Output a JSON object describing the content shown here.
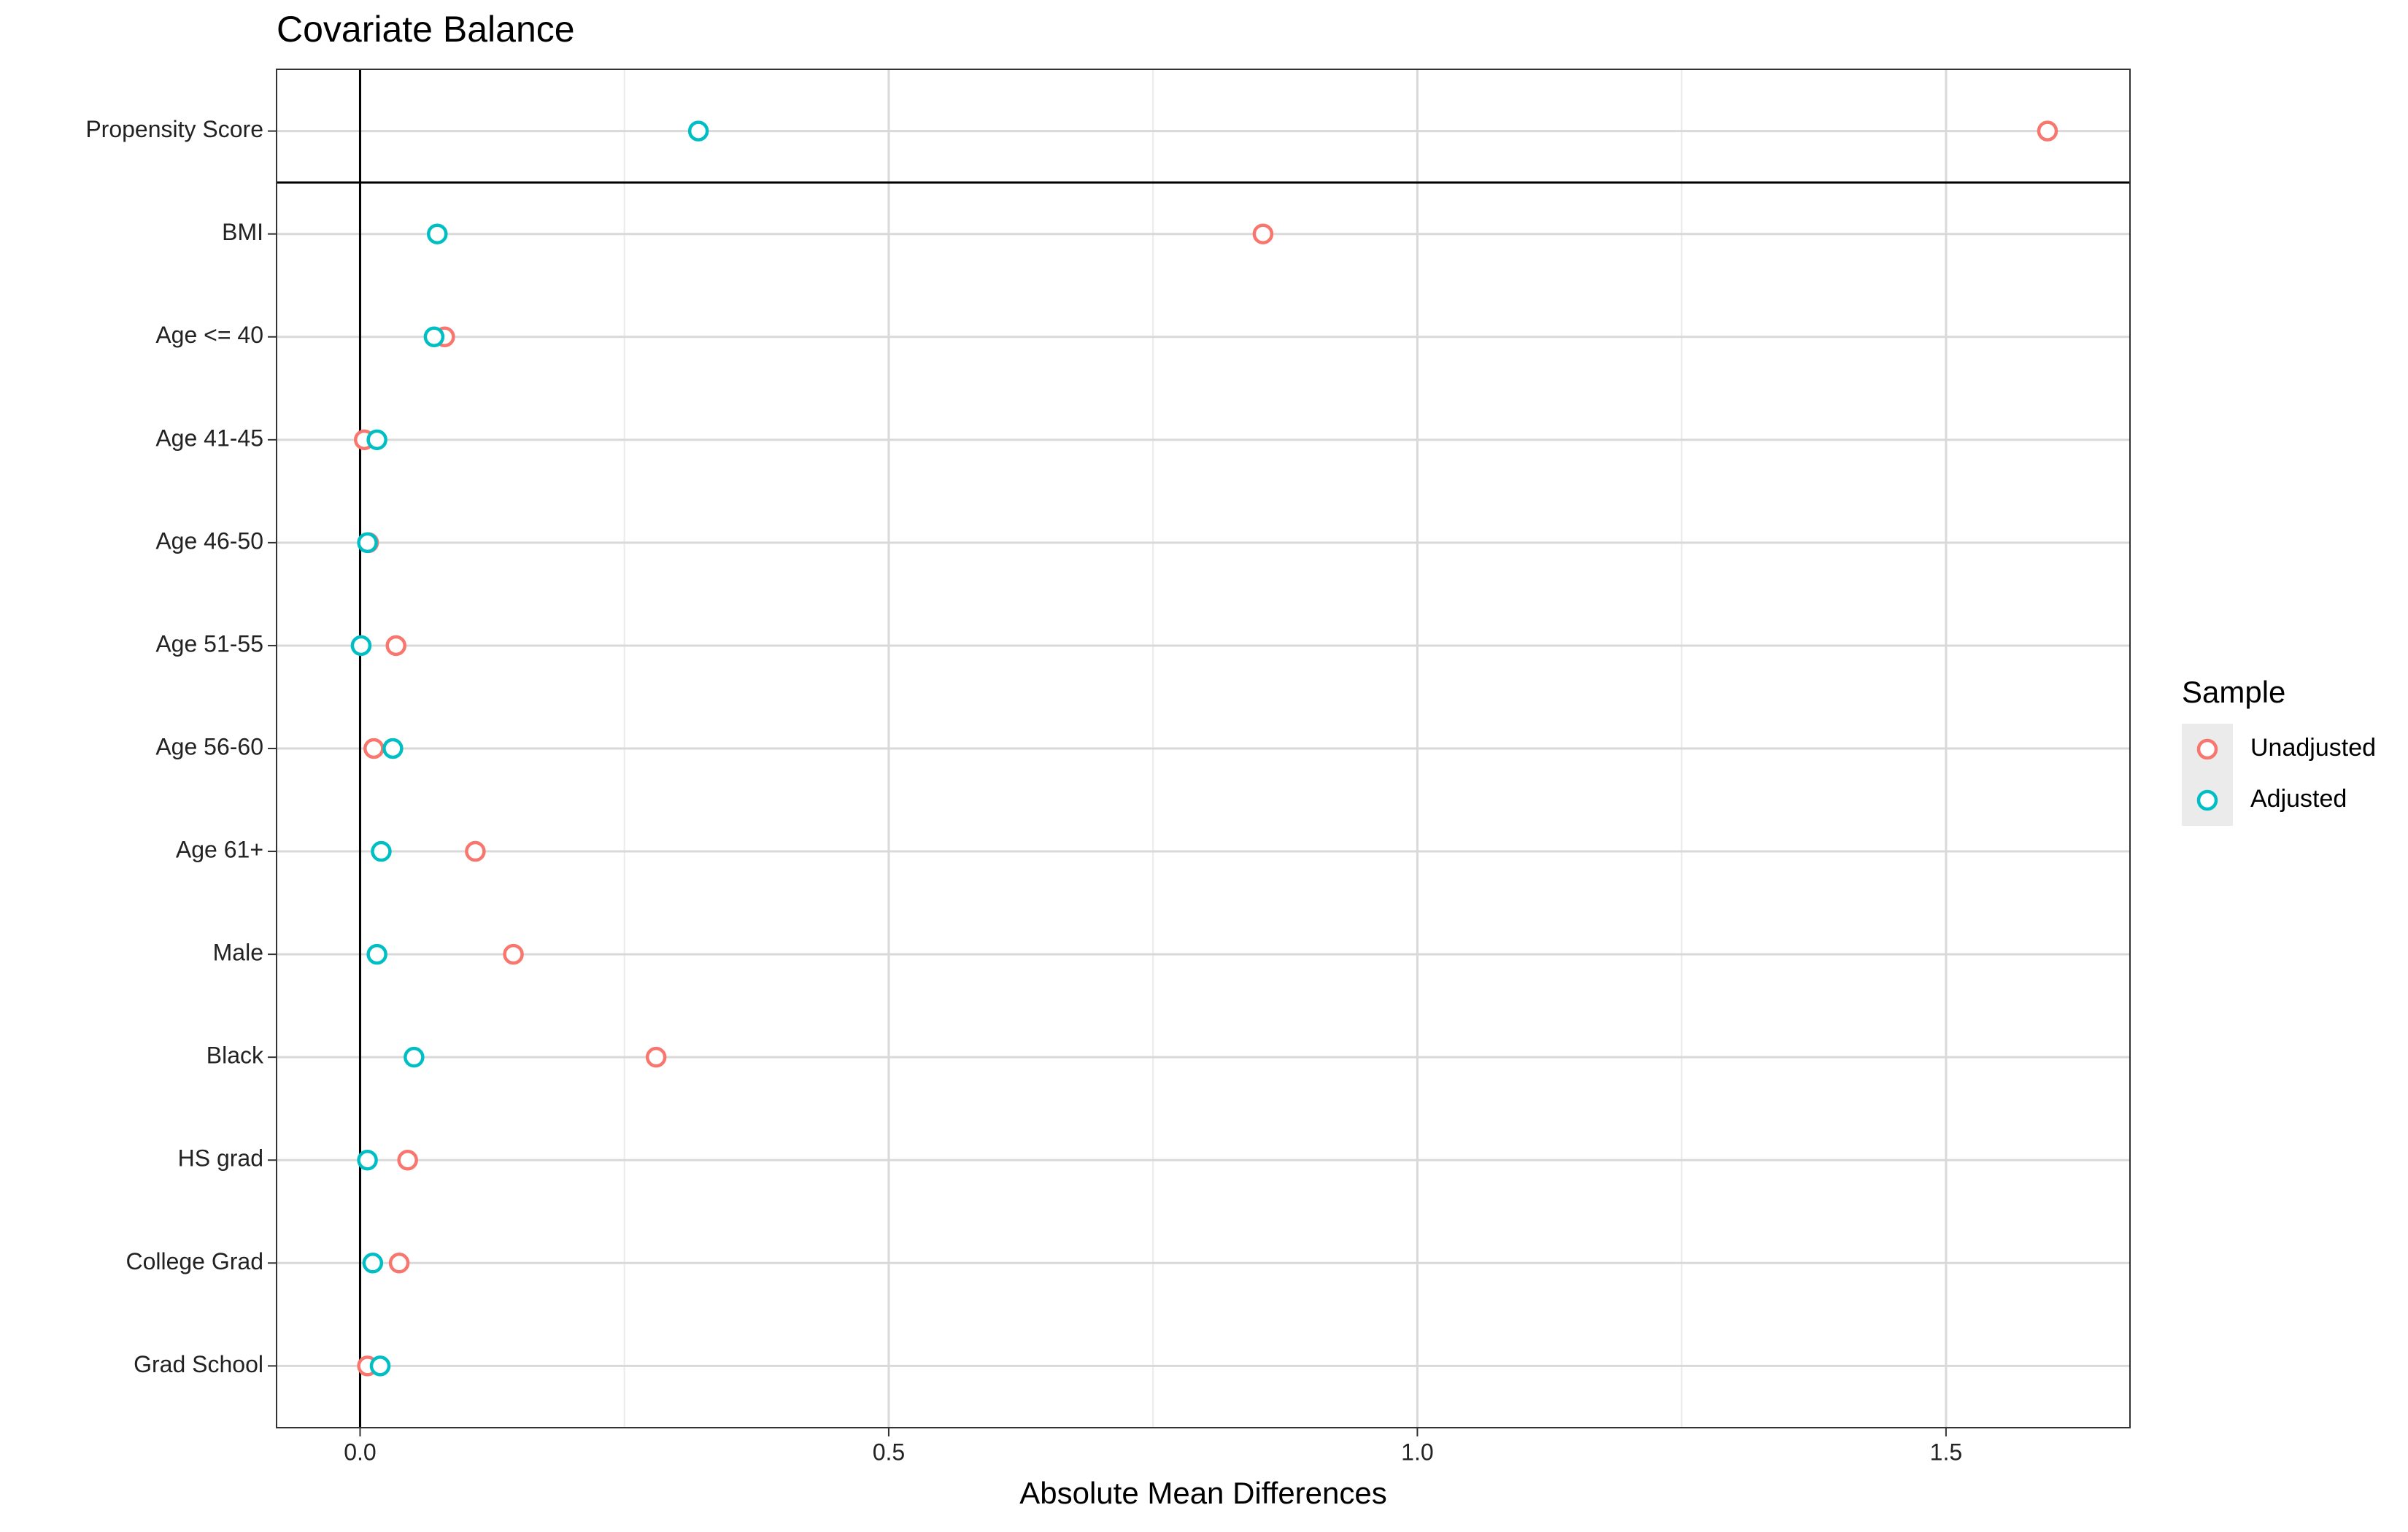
{
  "chart_data": {
    "type": "dot",
    "title": "Covariate Balance",
    "x_label": "Absolute Mean Differences",
    "legend_title": "Sample",
    "legend_position": "right",
    "categories": [
      "Propensity Score",
      "BMI",
      "Age <= 40",
      "Age 41-45",
      "Age 46-50",
      "Age 51-55",
      "Age 56-60",
      "Age 61+",
      "Male",
      "Black",
      "HS grad",
      "College Grad",
      "Grad School"
    ],
    "series": [
      {
        "name": "Unadjusted",
        "color": "#F8766D",
        "values": [
          1.596,
          0.854,
          0.08,
          0.004,
          0.008,
          0.034,
          0.013,
          0.109,
          0.145,
          0.28,
          0.045,
          0.037,
          0.007
        ]
      },
      {
        "name": "Adjusted",
        "color": "#00BFC4",
        "values": [
          0.32,
          0.073,
          0.07,
          0.016,
          0.007,
          0.001,
          0.031,
          0.02,
          0.016,
          0.051,
          0.007,
          0.012,
          0.019
        ]
      }
    ],
    "xlim": [
      -0.079,
      1.674
    ],
    "xticks": [
      {
        "value": 0,
        "label": "0.0"
      },
      0.5,
      {
        "value": 1,
        "label": "1.0"
      },
      1.5
    ],
    "grid": true
  }
}
